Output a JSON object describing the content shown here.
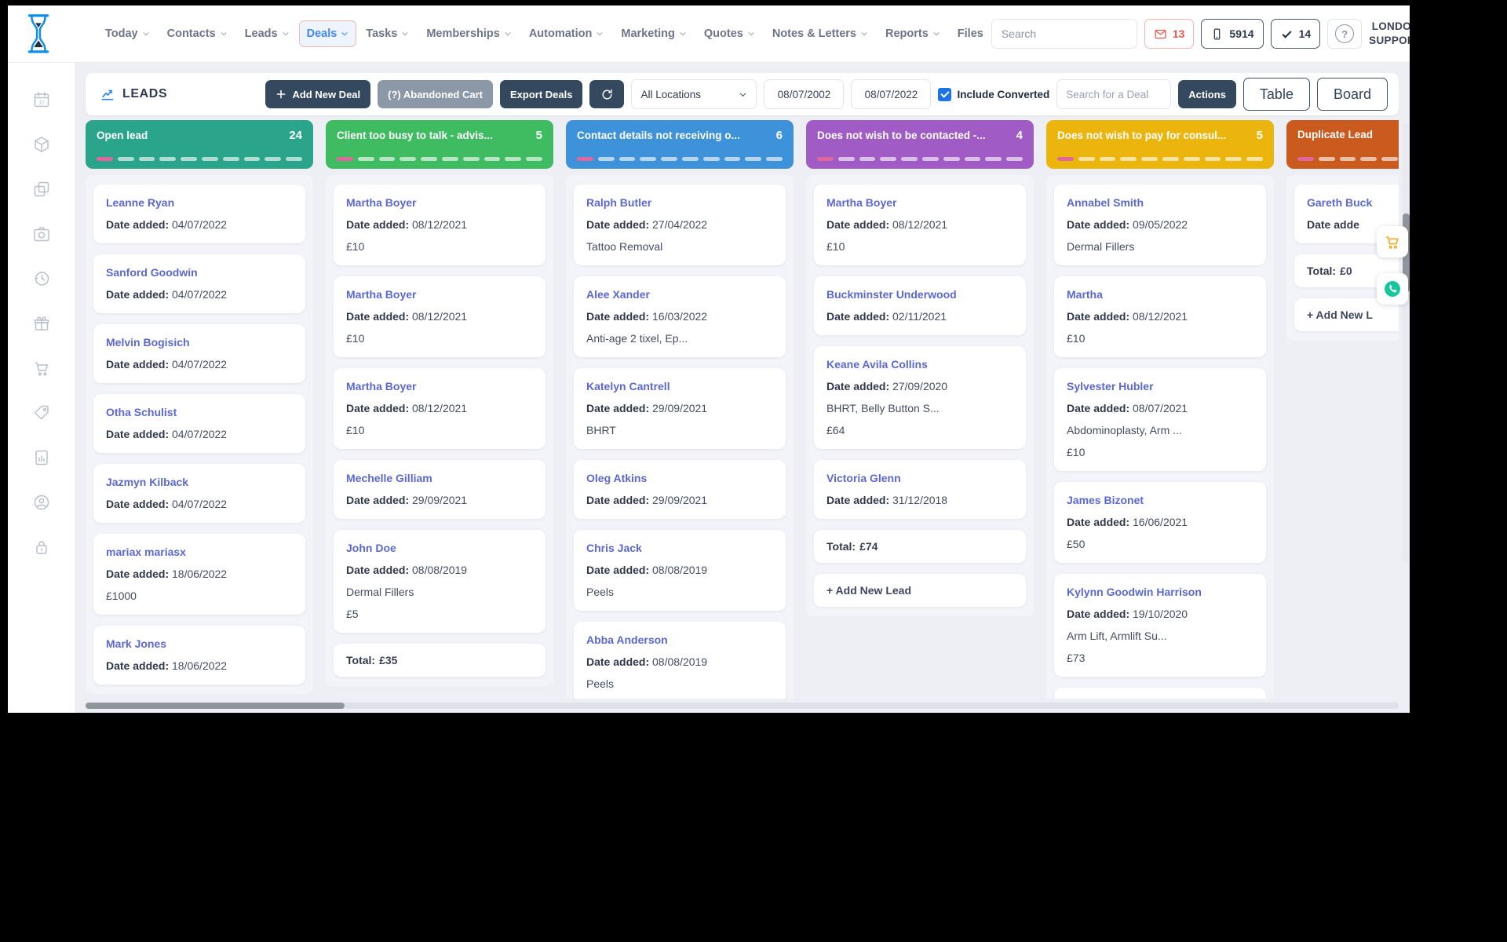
{
  "navbar": {
    "items": [
      {
        "label": "Today",
        "caret": true
      },
      {
        "label": "Contacts",
        "caret": true
      },
      {
        "label": "Leads",
        "caret": true
      },
      {
        "label": "Deals",
        "caret": true,
        "active": true
      },
      {
        "label": "Tasks",
        "caret": true
      },
      {
        "label": "Memberships",
        "caret": true
      },
      {
        "label": "Automation",
        "caret": true
      },
      {
        "label": "Marketing",
        "caret": true
      },
      {
        "label": "Quotes",
        "caret": true
      },
      {
        "label": "Notes & Letters",
        "caret": true
      },
      {
        "label": "Reports",
        "caret": true
      },
      {
        "label": "Files",
        "caret": false
      }
    ],
    "search_placeholder": "Search",
    "mail_badge": {
      "icon": "envelope-icon",
      "count": "13",
      "color": "#e4564e"
    },
    "phone_badge": {
      "icon": "phone-icon",
      "count": "5914"
    },
    "tasks_badge": {
      "icon": "check-icon",
      "count": "14"
    },
    "help_label": "?",
    "user": {
      "name_line1": "LONDON",
      "name_line2": "SUPPORT",
      "avatar_icon": "user-avatar-icon"
    }
  },
  "sidebar": {
    "icons": [
      "calendar-icon",
      "package-icon",
      "copy-icon",
      "camera-icon",
      "history-icon",
      "gift-icon",
      "cart-icon",
      "price-tag-icon",
      "report-icon",
      "user-circle-icon",
      "lock-icon"
    ]
  },
  "toolbar": {
    "title": "LEADS",
    "title_icon": "chart-icon",
    "add_new_deal": "Add New Deal",
    "abandoned_cart": "(?) Abandoned Cart",
    "export_deals": "Export Deals",
    "refresh_icon": "refresh-icon",
    "location_filter": "All Locations",
    "date_from": "08/07/2002",
    "date_to": "08/07/2022",
    "include_converted": "Include Converted",
    "include_converted_checked": true,
    "deal_search_placeholder": "Search for a Deal",
    "actions": "Actions",
    "table_view": "Table",
    "board_view": "Board"
  },
  "board": {
    "date_label": "Date added:",
    "dash_count": 10,
    "columns": [
      {
        "title": "Open lead",
        "count": "24",
        "color": "#2aa58c",
        "cards": [
          {
            "name": "Leanne Ryan",
            "date": "04/07/2022"
          },
          {
            "name": "Sanford Goodwin",
            "date": "04/07/2022"
          },
          {
            "name": "Melvin Bogisich",
            "date": "04/07/2022"
          },
          {
            "name": "Otha Schulist",
            "date": "04/07/2022"
          },
          {
            "name": "Jazmyn Kilback",
            "date": "04/07/2022"
          },
          {
            "name": "mariax mariasx",
            "date": "18/06/2022",
            "price": "£1000"
          },
          {
            "name": "Mark Jones",
            "date": "18/06/2022"
          }
        ]
      },
      {
        "title": "Client too busy to talk - advis...",
        "count": "5",
        "color": "#3fbc61",
        "cards": [
          {
            "name": "Martha Boyer",
            "date": "08/12/2021",
            "price": "£10"
          },
          {
            "name": "Martha Boyer",
            "date": "08/12/2021",
            "price": "£10"
          },
          {
            "name": "Martha Boyer",
            "date": "08/12/2021",
            "price": "£10"
          },
          {
            "name": "Mechelle Gilliam",
            "date": "29/09/2021"
          },
          {
            "name": "John Doe",
            "date": "08/08/2019",
            "service": "Dermal Fillers",
            "price": "£5"
          },
          {
            "total_label": "Total:",
            "total_value": "£35"
          }
        ]
      },
      {
        "title": "Contact details not receiving o...",
        "count": "6",
        "color": "#3e92d9",
        "cards": [
          {
            "name": "Ralph Butler",
            "date": "27/04/2022",
            "service": "Tattoo Removal"
          },
          {
            "name": "Alee Xander",
            "date": "16/03/2022",
            "service": "Anti-age 2 tixel, Ep..."
          },
          {
            "name": "Katelyn Cantrell",
            "date": "29/09/2021",
            "service": "BHRT"
          },
          {
            "name": "Oleg Atkins",
            "date": "29/09/2021"
          },
          {
            "name": "Chris Jack",
            "date": "08/08/2019",
            "service": "Peels"
          },
          {
            "name": "Abba Anderson",
            "date": "08/08/2019",
            "service": "Peels"
          }
        ]
      },
      {
        "title": "Does not wish to be contacted -...",
        "count": "4",
        "color": "#a05cc4",
        "cards": [
          {
            "name": "Martha Boyer",
            "date": "08/12/2021",
            "price": "£10"
          },
          {
            "name": "Buckminster Underwood",
            "date": "02/11/2021"
          },
          {
            "name": "Keane Avila Collins",
            "date": "27/09/2020",
            "service": "BHRT, Belly Button S...",
            "price": "£64"
          },
          {
            "name": "Victoria Glenn",
            "date": "31/12/2018"
          },
          {
            "total_label": "Total:",
            "total_value": "£74"
          },
          {
            "add": "+ Add New Lead"
          }
        ]
      },
      {
        "title": "Does not wish to pay for consul...",
        "count": "5",
        "color": "#ecb50d",
        "cards": [
          {
            "name": "Annabel Smith",
            "date": "09/05/2022",
            "service": "Dermal Fillers"
          },
          {
            "name": "Martha",
            "date": "08/12/2021",
            "price": "£10"
          },
          {
            "name": "Sylvester Hubler",
            "date": "08/07/2021",
            "service": "Abdominoplasty, Arm ...",
            "price": "£10"
          },
          {
            "name": "James Bizonet",
            "date": "16/06/2021",
            "price": "£50"
          },
          {
            "name": "Kylynn Goodwin Harrison",
            "date": "19/10/2020",
            "service": "Arm Lift, Armlift Su...",
            "price": "£73"
          }
        ]
      },
      {
        "title": "Duplicate Lead",
        "count": null,
        "color": "#cb5a1e",
        "cards": [
          {
            "name": "Gareth Buck",
            "date": "",
            "date_label": "Date adde"
          },
          {
            "total_label": "Total:",
            "total_value": "£0"
          },
          {
            "add": "+ Add New L"
          }
        ]
      }
    ]
  },
  "floating": {
    "cart_icon": "cart-orange-icon",
    "whatsapp_icon": "whatsapp-icon",
    "cart_color": "#f5a623",
    "whatsapp_color": "#16c79e"
  }
}
